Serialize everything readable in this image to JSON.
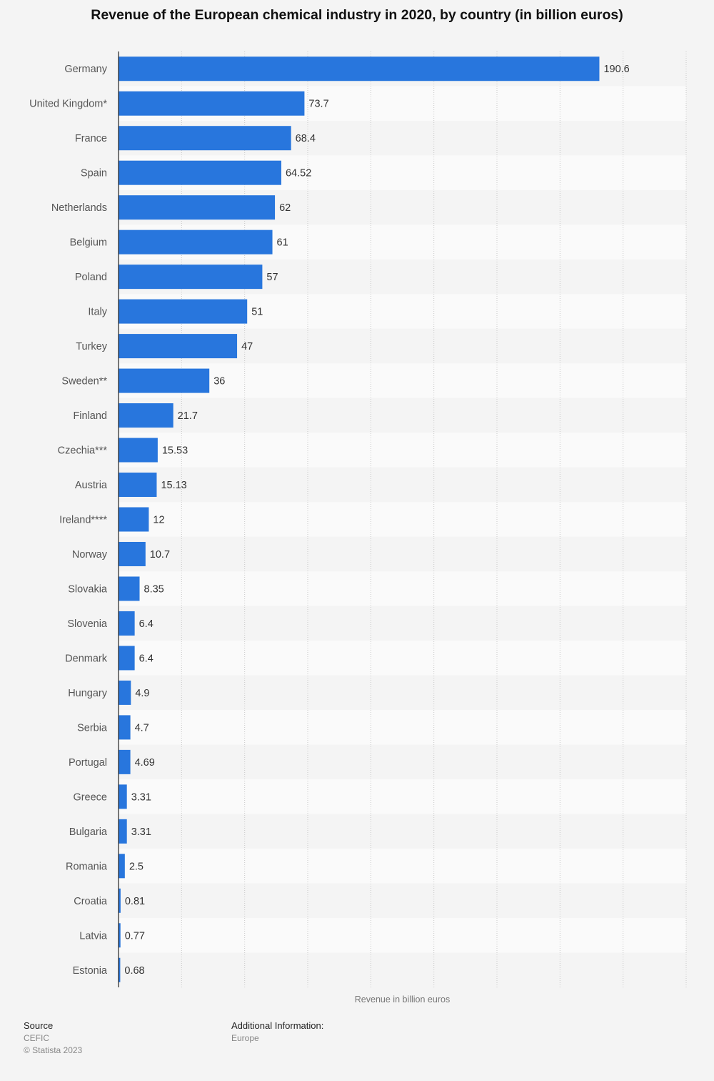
{
  "chart_data": {
    "type": "bar",
    "orientation": "horizontal",
    "title": "Revenue of the European chemical industry in 2020, by country (in billion euros)",
    "xlabel": "Revenue in billion euros",
    "ylabel": "",
    "xlim": [
      0,
      225
    ],
    "grid": true,
    "categories": [
      "Germany",
      "United Kingdom*",
      "France",
      "Spain",
      "Netherlands",
      "Belgium",
      "Poland",
      "Italy",
      "Turkey",
      "Sweden**",
      "Finland",
      "Czechia***",
      "Austria",
      "Ireland****",
      "Norway",
      "Slovakia",
      "Slovenia",
      "Denmark",
      "Hungary",
      "Serbia",
      "Portugal",
      "Greece",
      "Bulgaria",
      "Romania",
      "Croatia",
      "Latvia",
      "Estonia"
    ],
    "values": [
      190.6,
      73.7,
      68.4,
      64.52,
      62,
      61,
      57,
      51,
      47,
      36,
      21.7,
      15.53,
      15.13,
      12,
      10.7,
      8.35,
      6.4,
      6.4,
      4.9,
      4.7,
      4.69,
      3.31,
      3.31,
      2.5,
      0.81,
      0.77,
      0.68
    ],
    "value_labels": [
      "190.6",
      "73.7",
      "68.4",
      "64.52",
      "62",
      "61",
      "57",
      "51",
      "47",
      "36",
      "21.7",
      "15.53",
      "15.13",
      "12",
      "10.7",
      "8.35",
      "6.4",
      "6.4",
      "4.9",
      "4.7",
      "4.69",
      "3.31",
      "3.31",
      "2.5",
      "0.81",
      "0.77",
      "0.68"
    ],
    "bar_color": "#2876dd"
  },
  "footer": {
    "source_heading": "Source",
    "source_name": "CEFIC",
    "copyright": "© Statista 2023",
    "additional_heading": "Additional Information:",
    "additional_text": "Europe"
  }
}
